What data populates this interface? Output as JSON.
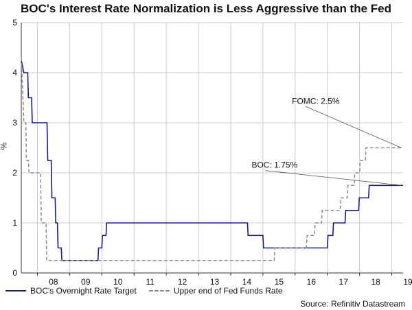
{
  "chart_data": {
    "type": "line",
    "title": "BOC's Interest Rate Normalization is Less Aggressive than the Fed",
    "xlabel": "",
    "ylabel": "%",
    "ylim": [
      0,
      5
    ],
    "xlim": [
      2007.5,
      2019.35
    ],
    "x_ticks": [
      {
        "label": "08",
        "x": 2008
      },
      {
        "label": "09",
        "x": 2009
      },
      {
        "label": "10",
        "x": 2010
      },
      {
        "label": "11",
        "x": 2011
      },
      {
        "label": "12",
        "x": 2012
      },
      {
        "label": "13",
        "x": 2013
      },
      {
        "label": "14",
        "x": 2014
      },
      {
        "label": "15",
        "x": 2015
      },
      {
        "label": "16",
        "x": 2016
      },
      {
        "label": "17",
        "x": 2017
      },
      {
        "label": "18",
        "x": 2018
      },
      {
        "label": "19",
        "x": 2019
      }
    ],
    "y_ticks": [
      0,
      1,
      2,
      3,
      4,
      5
    ],
    "grid": true,
    "series": [
      {
        "name": "BOC's Overnight Rate Target",
        "style": "solid",
        "color": "#1a1a8c",
        "points": [
          [
            2007.5,
            4.25
          ],
          [
            2007.58,
            4.0
          ],
          [
            2007.7,
            4.0
          ],
          [
            2007.72,
            3.5
          ],
          [
            2007.82,
            3.5
          ],
          [
            2007.84,
            3.0
          ],
          [
            2008.3,
            3.0
          ],
          [
            2008.32,
            2.25
          ],
          [
            2008.43,
            2.25
          ],
          [
            2008.45,
            1.5
          ],
          [
            2008.55,
            1.5
          ],
          [
            2008.57,
            1.0
          ],
          [
            2008.62,
            1.0
          ],
          [
            2008.64,
            0.5
          ],
          [
            2008.74,
            0.5
          ],
          [
            2008.76,
            0.25
          ],
          [
            2009.88,
            0.25
          ],
          [
            2009.9,
            0.5
          ],
          [
            2010.0,
            0.5
          ],
          [
            2010.02,
            0.75
          ],
          [
            2010.13,
            0.75
          ],
          [
            2010.15,
            1.0
          ],
          [
            2014.52,
            1.0
          ],
          [
            2014.54,
            0.75
          ],
          [
            2015.0,
            0.75
          ],
          [
            2015.02,
            0.5
          ],
          [
            2017.0,
            0.5
          ],
          [
            2017.02,
            0.75
          ],
          [
            2017.17,
            0.75
          ],
          [
            2017.19,
            1.0
          ],
          [
            2017.55,
            1.0
          ],
          [
            2017.57,
            1.25
          ],
          [
            2017.97,
            1.25
          ],
          [
            2017.99,
            1.5
          ],
          [
            2018.28,
            1.5
          ],
          [
            2018.3,
            1.75
          ],
          [
            2019.35,
            1.75
          ]
        ]
      },
      {
        "name": "Upper end of Fed Funds Rate",
        "style": "dashed",
        "color": "#8c8c8c",
        "points": [
          [
            2007.5,
            4.3
          ],
          [
            2007.58,
            3.0
          ],
          [
            2007.64,
            3.0
          ],
          [
            2007.66,
            2.25
          ],
          [
            2007.72,
            2.25
          ],
          [
            2007.74,
            2.0
          ],
          [
            2008.1,
            2.0
          ],
          [
            2008.12,
            1.0
          ],
          [
            2008.27,
            1.0
          ],
          [
            2008.29,
            0.25
          ],
          [
            2015.35,
            0.25
          ],
          [
            2015.37,
            0.5
          ],
          [
            2016.35,
            0.5
          ],
          [
            2016.37,
            0.75
          ],
          [
            2016.6,
            0.75
          ],
          [
            2016.62,
            1.0
          ],
          [
            2016.82,
            1.0
          ],
          [
            2016.84,
            1.25
          ],
          [
            2017.4,
            1.25
          ],
          [
            2017.42,
            1.5
          ],
          [
            2017.62,
            1.5
          ],
          [
            2017.64,
            1.75
          ],
          [
            2017.83,
            1.75
          ],
          [
            2017.85,
            2.0
          ],
          [
            2018.0,
            2.0
          ],
          [
            2018.02,
            2.25
          ],
          [
            2018.18,
            2.25
          ],
          [
            2018.2,
            2.5
          ],
          [
            2019.35,
            2.5
          ]
        ]
      }
    ],
    "annotations": [
      {
        "text": "FOMC: 2.5%",
        "x": 2015.9,
        "y": 3.38,
        "target_x": 2019.3,
        "target_y": 2.5
      },
      {
        "text": "BOC: 1.75%",
        "x": 2014.65,
        "y": 2.1,
        "target_x": 2019.3,
        "target_y": 1.75
      }
    ],
    "legend": [
      "BOC's Overnight Rate Target",
      "Upper end of Fed Funds Rate"
    ],
    "legend_position": "bottom-left",
    "source": "Source: Refinitiv Datastream"
  }
}
